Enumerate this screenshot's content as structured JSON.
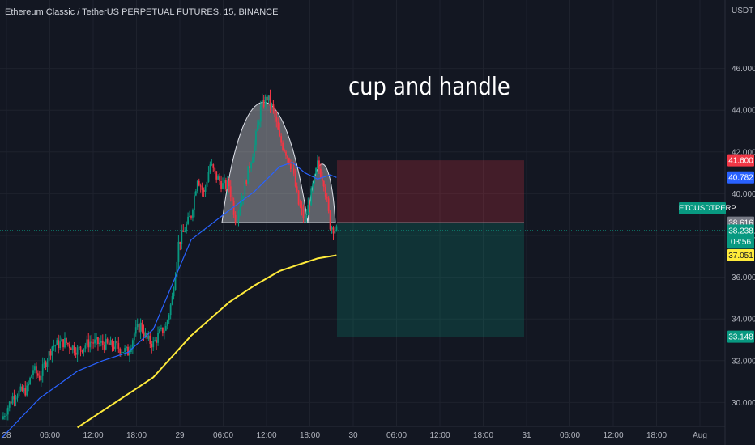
{
  "header": {
    "title": "Ethereum Classic / TetherUS PERPETUAL FUTURES, 15, BINANCE"
  },
  "unit": "USDT",
  "annotation": "cup and handle",
  "symbol_tag": "ETCUSDTPERP",
  "countdown": "03:56",
  "colors": {
    "background": "#131722",
    "up": "#089981",
    "down": "#f23645",
    "ma_blue": "#2962ff",
    "ma_yellow": "#ffeb3b"
  },
  "price_badges": [
    {
      "value": "41.600",
      "color": "#f23645",
      "text_color": "#ffffff"
    },
    {
      "value": "40.782",
      "color": "#2962ff",
      "text_color": "#ffffff"
    },
    {
      "value": "38.616",
      "color": "#787b86",
      "text_color": "#ffffff"
    },
    {
      "value": "38.238",
      "color": "#089981",
      "text_color": "#ffffff"
    },
    {
      "value": "37.051",
      "color": "#ffeb3b",
      "text_color": "#131722"
    },
    {
      "value": "33.148",
      "color": "#089981",
      "text_color": "#ffffff"
    }
  ],
  "chart_data": {
    "type": "candlestick",
    "title": "Ethereum Classic / TetherUS PERPETUAL FUTURES, 15, BINANCE",
    "y_unit": "USDT",
    "y_ticks": [
      "30.000",
      "32.000",
      "34.000",
      "36.000",
      "38.000",
      "40.000",
      "42.000",
      "44.000",
      "46.000"
    ],
    "ylim": [
      28.5,
      47
    ],
    "x_ticks": [
      "28",
      "06:00",
      "12:00",
      "18:00",
      "29",
      "06:00",
      "12:00",
      "18:00",
      "30",
      "06:00",
      "12:00",
      "18:00",
      "31",
      "06:00",
      "12:00",
      "18:00",
      "Aug"
    ],
    "price_path": [
      [
        0,
        29.2
      ],
      [
        2,
        30.4
      ],
      [
        4,
        30.6
      ],
      [
        5,
        31.6
      ],
      [
        6,
        31.2
      ],
      [
        8,
        32.7
      ],
      [
        10,
        32.9
      ],
      [
        12,
        32.5
      ],
      [
        14,
        32.9
      ],
      [
        16,
        32.8
      ],
      [
        18,
        32.7
      ],
      [
        20,
        32.4
      ],
      [
        21,
        33.3
      ],
      [
        22,
        33.7
      ],
      [
        23,
        33.0
      ],
      [
        24,
        32.8
      ],
      [
        25,
        33.3
      ],
      [
        26,
        33.6
      ],
      [
        27,
        35.0
      ],
      [
        28,
        37.6
      ],
      [
        30,
        39.0
      ],
      [
        31,
        40.8
      ],
      [
        32,
        40.0
      ],
      [
        33,
        41.4
      ],
      [
        34,
        40.8
      ],
      [
        35,
        40.4
      ],
      [
        36,
        40.4
      ],
      [
        37,
        38.8
      ],
      [
        38,
        39.8
      ],
      [
        40,
        42.3
      ],
      [
        41,
        44.1
      ],
      [
        42,
        44.6
      ],
      [
        43,
        44.0
      ],
      [
        44,
        42.6
      ],
      [
        45,
        42.0
      ],
      [
        46,
        41.2
      ],
      [
        47,
        39.5
      ],
      [
        48,
        38.7
      ],
      [
        49,
        40.0
      ],
      [
        50,
        41.4
      ],
      [
        51,
        40.6
      ],
      [
        52,
        38.5
      ],
      [
        53,
        38.24
      ]
    ],
    "blue_ma": [
      [
        0,
        28.3
      ],
      [
        6,
        30.2
      ],
      [
        12,
        31.5
      ],
      [
        16,
        32.0
      ],
      [
        20,
        32.4
      ],
      [
        24,
        33.5
      ],
      [
        30,
        37.8
      ],
      [
        36,
        39.2
      ],
      [
        40,
        40.1
      ],
      [
        44,
        41.3
      ],
      [
        46,
        41.5
      ],
      [
        48,
        41.0
      ],
      [
        50,
        40.7
      ],
      [
        52,
        40.9
      ],
      [
        53,
        40.78
      ]
    ],
    "yellow_ma": [
      [
        12,
        28.8
      ],
      [
        18,
        30.0
      ],
      [
        24,
        31.2
      ],
      [
        30,
        33.2
      ],
      [
        36,
        34.8
      ],
      [
        40,
        35.6
      ],
      [
        44,
        36.3
      ],
      [
        46,
        36.5
      ],
      [
        48,
        36.7
      ],
      [
        50,
        36.9
      ],
      [
        53,
        37.05
      ]
    ],
    "cup_handle": {
      "neckline": 38.616,
      "cup_peak": 44.75,
      "handle_peak": 41.5
    },
    "position": {
      "entry": 38.616,
      "stop_loss": 41.6,
      "take_profit": 33.148,
      "current": 38.238
    },
    "series": [
      {
        "name": "",
        "values": "candles"
      }
    ],
    "grid": true
  }
}
